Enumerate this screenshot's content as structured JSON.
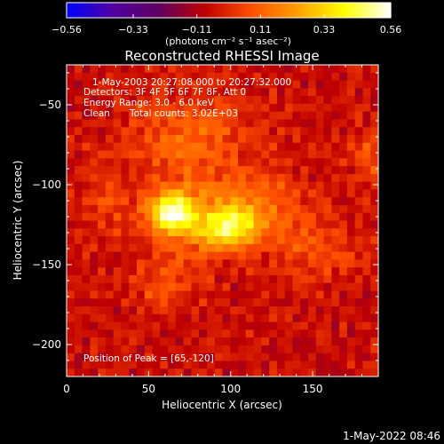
{
  "chart_data": {
    "type": "heatmap",
    "title": "Reconstructed RHESSI Image",
    "xlabel": "Heliocentric X (arcsec)",
    "ylabel": "Heliocentric Y (arcsec)",
    "xlim": [
      0,
      190
    ],
    "ylim": [
      -220,
      -25
    ],
    "xticks": [
      0,
      50,
      100,
      150
    ],
    "yticks": [
      -50,
      -100,
      -150,
      -200
    ],
    "colorbar": {
      "range": [
        -0.56,
        0.56
      ],
      "ticks": [
        -0.56,
        -0.33,
        -0.11,
        0.11,
        0.33,
        0.56
      ],
      "tick_labels": [
        "-0.56",
        "-0.33",
        "-0.11",
        "0.11",
        "0.33",
        "0.56"
      ],
      "units": "(photons cm⁻² s⁻¹ asec⁻²)",
      "colors": [
        "#0000ff",
        "#5000a0",
        "#600060",
        "#c00000",
        "#ff5000",
        "#ffa000",
        "#ffff00",
        "#ffffff"
      ]
    },
    "annotations": {
      "time_range": "1-May-2003 20:27:08.000 to 20:27:32.000",
      "detectors": "Detectors: 3F 4F 5F 6F 7F 8F, Att 0",
      "energy": "Energy Range: 3.0 - 6.0 keV",
      "method": "Clean",
      "counts": "Total counts: 3.02E+03",
      "peak": "Position of Peak = [65,-120]"
    },
    "peak": [
      65,
      -120
    ],
    "sources": [
      {
        "x": 63,
        "y": -118,
        "amp": 0.45,
        "sx": 9,
        "sy": 9
      },
      {
        "x": 100,
        "y": -128,
        "amp": 0.38,
        "sx": 13,
        "sy": 9
      },
      {
        "x": 80,
        "y": -122,
        "amp": 0.22,
        "sx": 20,
        "sy": 14
      },
      {
        "x": 120,
        "y": -110,
        "amp": 0.16,
        "sx": 18,
        "sy": 12
      },
      {
        "x": 75,
        "y": -75,
        "amp": 0.17,
        "sx": 28,
        "sy": 22
      },
      {
        "x": 150,
        "y": -140,
        "amp": 0.14,
        "sx": 18,
        "sy": 14
      },
      {
        "x": 60,
        "y": -160,
        "amp": 0.13,
        "sx": 15,
        "sy": 12
      },
      {
        "x": 185,
        "y": -85,
        "amp": 0.14,
        "sx": 8,
        "sy": 12
      },
      {
        "x": 25,
        "y": -115,
        "amp": 0.09,
        "sx": 10,
        "sy": 18
      }
    ]
  },
  "footer": {
    "date": "1-May-2022 08:46"
  },
  "colors": {
    "background": "#000000",
    "foreground": "#ffffff"
  }
}
